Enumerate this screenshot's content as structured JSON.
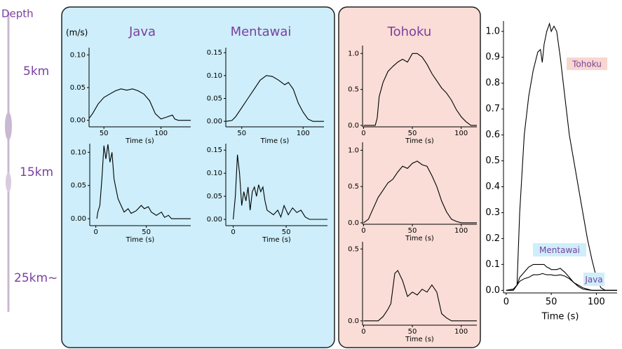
{
  "depth": {
    "title": "Depth",
    "levels": [
      "5km",
      "15km",
      "25km~"
    ]
  },
  "columns": [
    "Java",
    "Mentawai",
    "Tohoku"
  ],
  "unit": "(m/s)",
  "chart_data": [
    {
      "type": "line",
      "xlabel": "Time (s)",
      "xlim": [
        37,
        126
      ],
      "ylim": [
        -0.01,
        0.111
      ],
      "xticks": [
        50,
        100
      ],
      "yticks": [
        {
          "value": 0,
          "label": "0.00"
        },
        0.05,
        {
          "value": 0.1,
          "label": "0.10"
        }
      ],
      "x": [
        37,
        40,
        45,
        50,
        55,
        60,
        65,
        70,
        75,
        80,
        85,
        90,
        95,
        100,
        105,
        110,
        112,
        115,
        126
      ],
      "values": [
        0.003,
        0.01,
        0.025,
        0.035,
        0.04,
        0.045,
        0.048,
        0.046,
        0.048,
        0.045,
        0.04,
        0.03,
        0.01,
        0.002,
        0.005,
        0.008,
        0.002,
        0,
        0
      ]
    },
    {
      "type": "line",
      "xlabel": "Time (s)",
      "xlim": [
        37,
        117
      ],
      "ylim": [
        -0.012,
        0.161
      ],
      "xticks": [
        50,
        100
      ],
      "yticks": [
        {
          "value": 0,
          "label": "0.00"
        },
        0.05,
        {
          "value": 0.1,
          "label": "0.10"
        },
        0.15
      ],
      "x": [
        37,
        42,
        45,
        50,
        55,
        60,
        65,
        70,
        75,
        80,
        85,
        88,
        92,
        96,
        100,
        104,
        108,
        117
      ],
      "values": [
        0,
        0.002,
        0.01,
        0.03,
        0.05,
        0.07,
        0.09,
        0.1,
        0.098,
        0.09,
        0.08,
        0.085,
        0.07,
        0.04,
        0.02,
        0.005,
        0,
        0
      ]
    },
    {
      "type": "line",
      "xlabel": "Time (s)",
      "xlim": [
        -6,
        94
      ],
      "ylim": [
        -0.0105,
        0.113
      ],
      "xticks": [
        0,
        50
      ],
      "yticks": [
        {
          "value": 0,
          "label": "0.00"
        },
        0.05,
        {
          "value": 0.1,
          "label": "0.10"
        }
      ],
      "x": [
        1,
        2,
        4,
        6,
        8,
        10,
        12,
        14,
        16,
        18,
        20,
        22,
        25,
        28,
        32,
        35,
        40,
        45,
        48,
        52,
        55,
        60,
        65,
        68,
        72,
        75,
        94
      ],
      "values": [
        0,
        0.01,
        0.02,
        0.06,
        0.11,
        0.09,
        0.112,
        0.085,
        0.1,
        0.06,
        0.045,
        0.03,
        0.02,
        0.01,
        0.015,
        0.008,
        0.012,
        0.02,
        0.015,
        0.018,
        0.01,
        0.005,
        0.01,
        0.002,
        0.005,
        0,
        0
      ]
    },
    {
      "type": "line",
      "xlabel": "Time (s)",
      "xlim": [
        -7,
        89
      ],
      "ylim": [
        -0.0136,
        0.164
      ],
      "xticks": [
        0,
        50
      ],
      "yticks": [
        {
          "value": 0,
          "label": "0.00"
        },
        0.05,
        {
          "value": 0.1,
          "label": "0.10"
        },
        0.15
      ],
      "x": [
        0,
        2,
        4,
        6,
        8,
        10,
        12,
        14,
        16,
        18,
        20,
        22,
        24,
        26,
        28,
        30,
        32,
        35,
        38,
        42,
        45,
        48,
        52,
        56,
        60,
        64,
        68,
        72,
        89
      ],
      "values": [
        0,
        0.05,
        0.14,
        0.1,
        0.03,
        0.06,
        0.04,
        0.07,
        0.02,
        0.06,
        0.07,
        0.05,
        0.075,
        0.06,
        0.07,
        0.04,
        0.02,
        0.015,
        0.01,
        0.02,
        0.005,
        0.03,
        0.01,
        0.025,
        0.015,
        0.02,
        0.005,
        0,
        0
      ]
    },
    {
      "type": "line",
      "xlabel": "Time (s)",
      "xlim": [
        -1,
        116
      ],
      "ylim": [
        -0.02,
        1.11
      ],
      "xticks": [
        0,
        50,
        100
      ],
      "yticks": [
        {
          "value": 0,
          "label": "0.0"
        },
        0.5,
        {
          "value": 1,
          "label": "1.0"
        }
      ],
      "x": [
        0,
        12,
        14,
        16,
        20,
        25,
        30,
        35,
        40,
        45,
        50,
        55,
        60,
        65,
        70,
        75,
        80,
        85,
        90,
        95,
        100,
        105,
        110,
        116
      ],
      "values": [
        0,
        0,
        0.1,
        0.4,
        0.6,
        0.75,
        0.82,
        0.88,
        0.92,
        0.88,
        1.0,
        1.0,
        0.95,
        0.85,
        0.72,
        0.62,
        0.52,
        0.45,
        0.35,
        0.22,
        0.12,
        0.05,
        0,
        0
      ]
    },
    {
      "type": "line",
      "xlabel": "Time (s)",
      "xlim": [
        -1,
        116
      ],
      "ylim": [
        -0.02,
        1.11
      ],
      "xticks": [
        0,
        50,
        100
      ],
      "yticks": [
        {
          "value": 0,
          "label": "0.0"
        },
        0.5,
        {
          "value": 1,
          "label": "1.0"
        }
      ],
      "x": [
        0,
        5,
        10,
        15,
        20,
        25,
        30,
        35,
        40,
        45,
        50,
        55,
        60,
        65,
        70,
        75,
        80,
        85,
        90,
        95,
        100,
        116
      ],
      "values": [
        0,
        0.05,
        0.2,
        0.35,
        0.45,
        0.55,
        0.6,
        0.7,
        0.78,
        0.75,
        0.82,
        0.85,
        0.8,
        0.78,
        0.65,
        0.5,
        0.3,
        0.15,
        0.05,
        0.02,
        0,
        0
      ]
    },
    {
      "type": "line",
      "xlabel": "Time (s)",
      "xlim": [
        -1,
        116
      ],
      "ylim": [
        -0.03,
        0.55
      ],
      "xticks": [
        0,
        50,
        100
      ],
      "yticks": [
        {
          "value": 0,
          "label": "0.0"
        },
        0.5
      ],
      "x": [
        0,
        15,
        20,
        25,
        28,
        32,
        35,
        40,
        45,
        50,
        55,
        60,
        65,
        70,
        75,
        80,
        85,
        90,
        116
      ],
      "values": [
        0,
        0,
        0.03,
        0.08,
        0.12,
        0.33,
        0.35,
        0.28,
        0.17,
        0.2,
        0.18,
        0.22,
        0.2,
        0.25,
        0.2,
        0.05,
        0.02,
        0,
        0
      ]
    },
    {
      "type": "line",
      "xlabel": "Time (s)",
      "xlim": [
        -3,
        123
      ],
      "ylim": [
        -0.01,
        1.04
      ],
      "xticks": [
        0,
        50,
        100
      ],
      "yticks": [
        {
          "value": 0,
          "label": "0.0"
        },
        0.1,
        0.2,
        0.3,
        0.4,
        0.5,
        0.6,
        0.7,
        0.8,
        0.9,
        {
          "value": 1,
          "label": "1.0"
        }
      ],
      "x": [
        0,
        8,
        12,
        15,
        20,
        25,
        30,
        35,
        38,
        40,
        42,
        45,
        48,
        50,
        53,
        56,
        60,
        65,
        70,
        75,
        80,
        85,
        90,
        95,
        100,
        105,
        110,
        123
      ],
      "series": [
        {
          "name": "Tohoku",
          "color": "#000000",
          "values": [
            0,
            0,
            0.02,
            0.3,
            0.6,
            0.75,
            0.85,
            0.92,
            0.93,
            0.88,
            0.95,
            1.0,
            1.03,
            1.0,
            1.02,
            1.0,
            0.9,
            0.75,
            0.6,
            0.5,
            0.4,
            0.3,
            0.2,
            0.12,
            0.05,
            0.01,
            0,
            0
          ]
        },
        {
          "name": "Mentawai",
          "color": "#000000",
          "values": [
            0,
            0.005,
            0.02,
            0.05,
            0.07,
            0.09,
            0.1,
            0.1,
            0.1,
            0.1,
            0.1,
            0.09,
            0.085,
            0.08,
            0.08,
            0.08,
            0.085,
            0.07,
            0.05,
            0.03,
            0.02,
            0.01,
            0.005,
            0,
            0,
            0,
            0,
            0
          ]
        },
        {
          "name": "Java",
          "color": "#000000",
          "values": [
            0,
            0.005,
            0.02,
            0.035,
            0.045,
            0.05,
            0.06,
            0.06,
            0.062,
            0.065,
            0.063,
            0.06,
            0.06,
            0.06,
            0.058,
            0.058,
            0.06,
            0.055,
            0.045,
            0.03,
            0.015,
            0.005,
            0.002,
            0,
            0,
            0,
            0,
            0
          ]
        }
      ]
    }
  ]
}
